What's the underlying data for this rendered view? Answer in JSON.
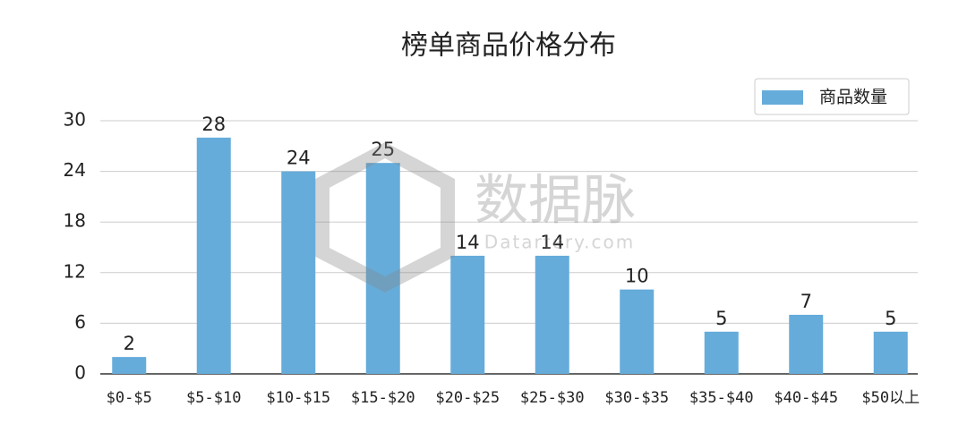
{
  "chart_data": {
    "type": "bar",
    "title": "榜单商品价格分布",
    "categories": [
      "$0-$5",
      "$5-$10",
      "$10-$15",
      "$15-$20",
      "$20-$25",
      "$25-$30",
      "$30-$35",
      "$35-$40",
      "$40-$45",
      "$50以上"
    ],
    "series": [
      {
        "name": "商品数量",
        "color": "#65acdb",
        "values": [
          2,
          28,
          24,
          25,
          14,
          14,
          10,
          5,
          7,
          5
        ]
      }
    ],
    "ylim": [
      0,
      30
    ],
    "yticks": [
      0,
      6,
      12,
      18,
      24,
      30
    ],
    "grid": true,
    "legend": "top-right",
    "watermark": {
      "name": "数据脉",
      "site": "Datartery.com"
    }
  }
}
